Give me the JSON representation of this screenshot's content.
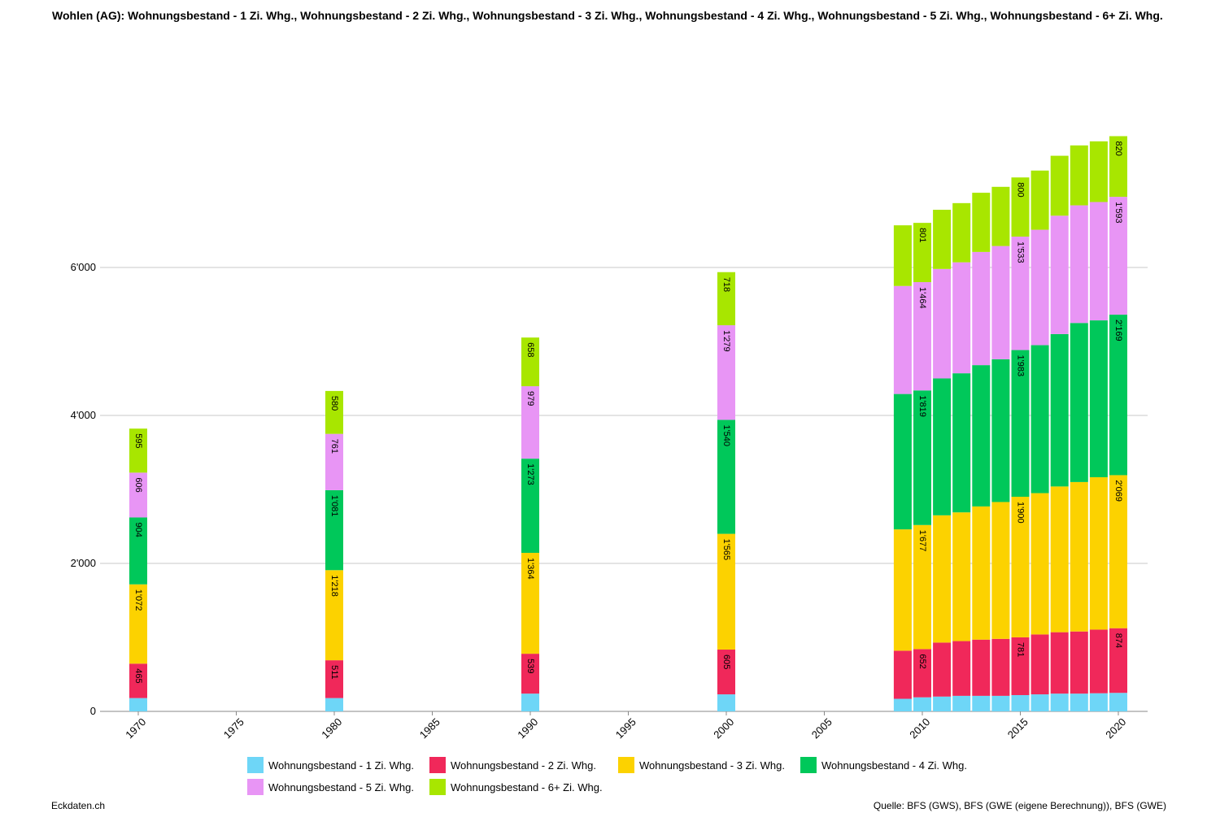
{
  "title": "Wohlen (AG): Wohnungsbestand - 1 Zi. Whg., Wohnungsbestand - 2 Zi. Whg., Wohnungsbestand - 3 Zi. Whg., Wohnungsbestand - 4 Zi. Whg., Wohnungsbestand - 5 Zi. Whg., Wohnungsbestand - 6+ Zi. Whg.",
  "footer": {
    "site": "Eckdaten.ch",
    "source": "Quelle: BFS (GWS), BFS (GWE (eigene Berechnung)), BFS (GWE)"
  },
  "chart_data": {
    "type": "bar",
    "stacked": true,
    "x": [
      1970,
      1980,
      1990,
      2000,
      2009,
      2010,
      2011,
      2012,
      2013,
      2014,
      2015,
      2016,
      2017,
      2018,
      2019,
      2020
    ],
    "x_ticks": [
      "1970",
      "1975",
      "1980",
      "1985",
      "1990",
      "1995",
      "2000",
      "2005",
      "2010",
      "2015",
      "2020"
    ],
    "y_ticks": [
      "0",
      "2'000",
      "4'000",
      "6'000"
    ],
    "ylim": [
      0,
      8000
    ],
    "grid": true,
    "legend_position": "bottom",
    "series": [
      {
        "name": "Wohnungsbestand - 1 Zi. Whg.",
        "color": "#6ed6f7",
        "values": [
          180,
          180,
          240,
          230,
          170,
          190,
          200,
          210,
          210,
          210,
          220,
          230,
          240,
          240,
          245,
          250
        ],
        "labels": [
          "",
          "",
          "",
          "",
          "",
          "",
          "",
          "",
          "",
          "",
          "",
          "",
          "",
          "",
          "",
          ""
        ]
      },
      {
        "name": "Wohnungsbestand - 2 Zi. Whg.",
        "color": "#f0285a",
        "values": [
          465,
          511,
          539,
          605,
          650,
          652,
          730,
          740,
          760,
          770,
          781,
          810,
          830,
          840,
          860,
          874
        ],
        "labels": [
          "465",
          "511",
          "539",
          "605",
          "",
          "652",
          "",
          "",
          "",
          "",
          "781",
          "",
          "",
          "",
          "",
          "874"
        ]
      },
      {
        "name": "Wohnungsbestand - 3 Zi. Whg.",
        "color": "#fcd200",
        "values": [
          1072,
          1218,
          1364,
          1565,
          1640,
          1677,
          1720,
          1740,
          1800,
          1850,
          1900,
          1910,
          1970,
          2020,
          2060,
          2069
        ],
        "labels": [
          "1'072",
          "1'218",
          "1'364",
          "1'565",
          "",
          "1'677",
          "",
          "",
          "",
          "",
          "1'900",
          "",
          "",
          "",
          "",
          "2'069"
        ]
      },
      {
        "name": "Wohnungsbestand - 4 Zi. Whg.",
        "color": "#00c85a",
        "values": [
          904,
          1081,
          1273,
          1540,
          1830,
          1819,
          1850,
          1880,
          1910,
          1930,
          1983,
          2000,
          2060,
          2150,
          2120,
          2169
        ],
        "labels": [
          "904",
          "1'081",
          "1'273",
          "1'540",
          "",
          "1'819",
          "",
          "",
          "",
          "",
          "1'983",
          "",
          "",
          "",
          "",
          "2'169"
        ]
      },
      {
        "name": "Wohnungsbestand - 5 Zi. Whg.",
        "color": "#e895f5",
        "values": [
          606,
          761,
          979,
          1279,
          1460,
          1464,
          1480,
          1500,
          1530,
          1530,
          1533,
          1560,
          1600,
          1590,
          1600,
          1593
        ],
        "labels": [
          "606",
          "761",
          "979",
          "1'279",
          "",
          "1'464",
          "",
          "",
          "",
          "",
          "1'533",
          "",
          "",
          "",
          "",
          "1'593"
        ]
      },
      {
        "name": "Wohnungsbestand - 6+ Zi. Whg.",
        "color": "#a8e600",
        "values": [
          595,
          580,
          658,
          718,
          820,
          801,
          800,
          800,
          800,
          800,
          800,
          800,
          810,
          810,
          820,
          820
        ],
        "labels": [
          "595",
          "580",
          "658",
          "718",
          "",
          "801",
          "",
          "",
          "",
          "",
          "800",
          "",
          "",
          "",
          "",
          "820"
        ]
      }
    ]
  }
}
